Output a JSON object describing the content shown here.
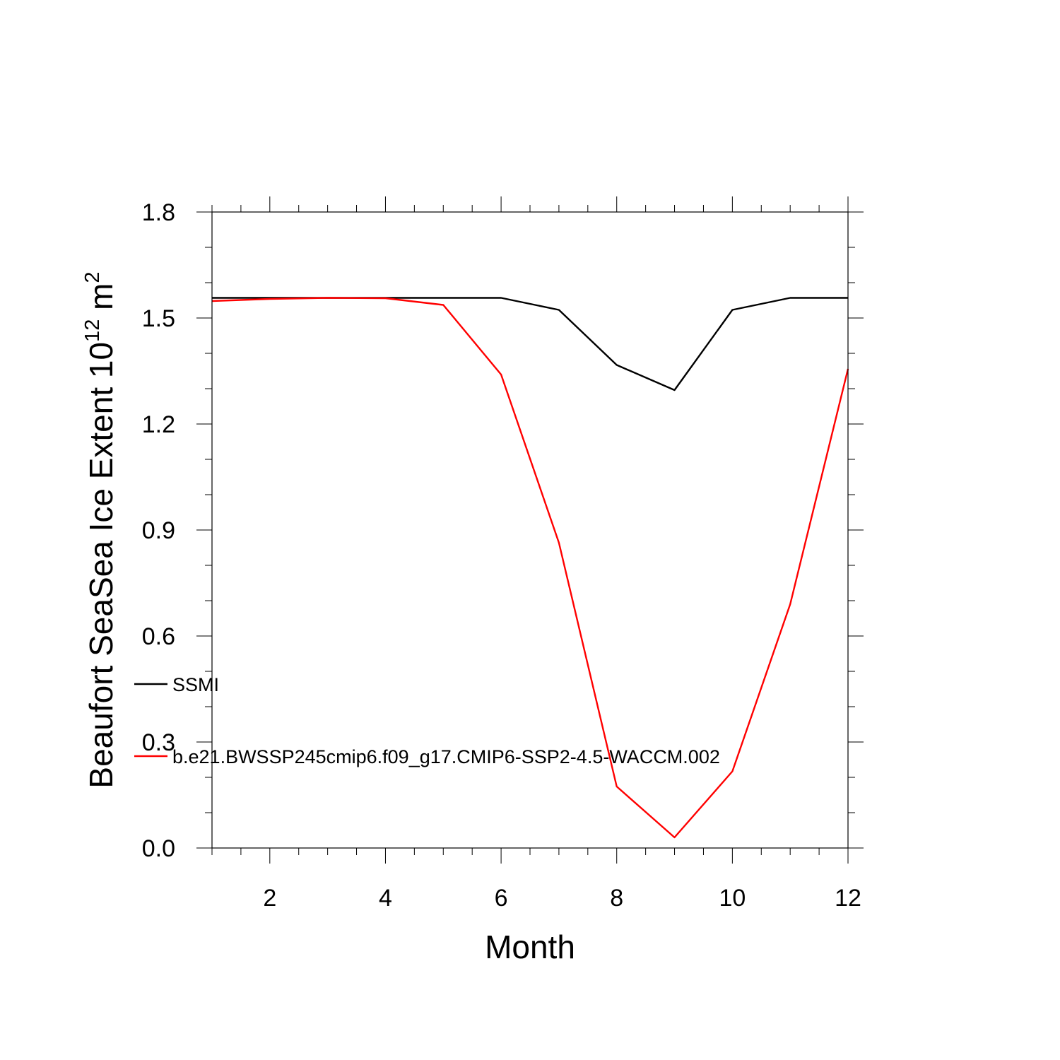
{
  "chart_data": {
    "type": "line",
    "title": "",
    "xlabel": "Month",
    "ylabel": {
      "base": "Beaufort SeaSea Ice Extent 10",
      "sup": "12",
      "unit": " m",
      "unit_sup": "2"
    },
    "xlim": [
      1,
      12
    ],
    "ylim": [
      0.0,
      1.8
    ],
    "xticks": [
      2,
      4,
      6,
      8,
      10,
      12
    ],
    "xtick_labels": [
      "2",
      "4",
      "6",
      "8",
      "10",
      "12"
    ],
    "yticks": [
      0.0,
      0.3,
      0.6,
      0.9,
      1.2,
      1.5,
      1.8
    ],
    "ytick_labels": [
      "0.0",
      "0.3",
      "0.6",
      "0.9",
      "1.2",
      "1.5",
      "1.8"
    ],
    "x_minor_step": 0.5,
    "y_minor_step": 0.1,
    "grid": false,
    "legend_position": "left-center",
    "x": [
      1,
      2,
      3,
      4,
      5,
      6,
      7,
      8,
      9,
      10,
      11,
      12
    ],
    "series": [
      {
        "name": "SSMI",
        "color": "#000000",
        "values": [
          1.557,
          1.557,
          1.557,
          1.557,
          1.557,
          1.557,
          1.523,
          1.367,
          1.296,
          1.523,
          1.557,
          1.557
        ]
      },
      {
        "name": "b.e21.BWSSP245cmip6.f09_g17.CMIP6-SSP2-4.5-WACCM.002",
        "color": "#ff0000",
        "values": [
          1.548,
          1.554,
          1.557,
          1.556,
          1.537,
          1.34,
          0.864,
          0.174,
          0.03,
          0.217,
          0.69,
          1.356
        ]
      }
    ]
  }
}
